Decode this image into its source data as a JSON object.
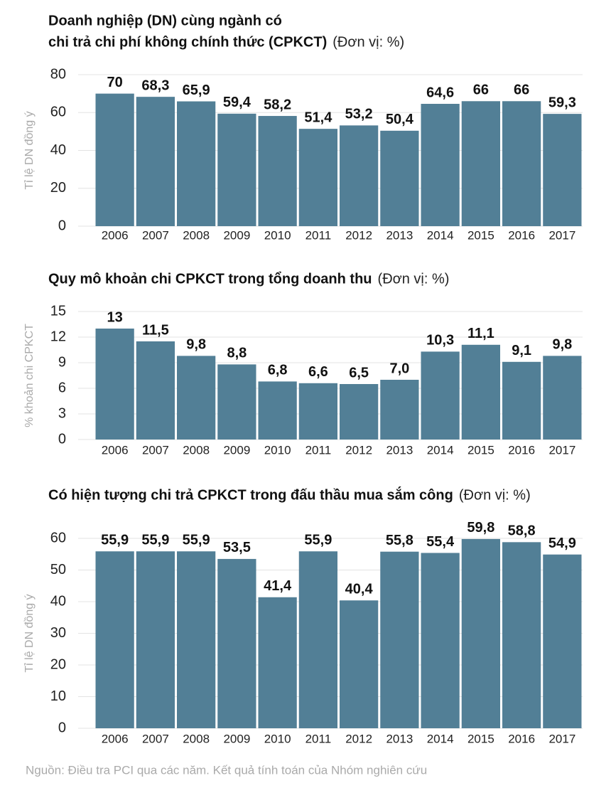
{
  "chart_data": [
    {
      "type": "bar",
      "title": [
        "Doanh nghiệp (DN) cùng ngành có",
        "chi trả chi phí không chính thức (CPKCT)"
      ],
      "unit": "(Đơn vị: %)",
      "ylabel": "Tỉ lệ DN đồng ý",
      "categories": [
        "2006",
        "2007",
        "2008",
        "2009",
        "2010",
        "2011",
        "2012",
        "2013",
        "2014",
        "2015",
        "2016",
        "2017"
      ],
      "values": [
        70,
        68.3,
        65.9,
        59.4,
        58.2,
        51.4,
        53.2,
        50.4,
        64.6,
        66,
        66,
        59.3
      ],
      "value_labels": [
        "70",
        "68,3",
        "65,9",
        "59,4",
        "58,2",
        "51,4",
        "53,2",
        "50,4",
        "64,6",
        "66",
        "66",
        "59,3"
      ],
      "color": "#527f96",
      "ylim": [
        0,
        80
      ],
      "yticks": [
        0,
        20,
        40,
        60,
        80
      ],
      "grid": true
    },
    {
      "type": "bar",
      "title": "Quy mô khoản chi CPKCT trong tổng doanh thu",
      "unit": "(Đơn vị: %)",
      "ylabel": "% khoản chi CPKCT",
      "categories": [
        "2006",
        "2007",
        "2008",
        "2009",
        "2010",
        "2011",
        "2012",
        "2013",
        "2014",
        "2015",
        "2016",
        "2017"
      ],
      "values": [
        13,
        11.5,
        9.8,
        8.8,
        6.8,
        6.6,
        6.5,
        7.0,
        10.3,
        11.1,
        9.1,
        9.8
      ],
      "value_labels": [
        "13",
        "11,5",
        "9,8",
        "8,8",
        "6,8",
        "6,6",
        "6,5",
        "7,0",
        "10,3",
        "11,1",
        "9,1",
        "9,8"
      ],
      "color": "#527f96",
      "ylim": [
        0,
        15
      ],
      "yticks": [
        0,
        3,
        6,
        9,
        12,
        15
      ],
      "grid": true
    },
    {
      "type": "bar",
      "title": "Có hiện tượng chi trả CPKCT trong đấu thầu mua sắm công",
      "unit": "(Đơn vị: %)",
      "ylabel": "Tỉ lệ DN đồng ý",
      "categories": [
        "2006",
        "2007",
        "2008",
        "2009",
        "2010",
        "2011",
        "2012",
        "2013",
        "2014",
        "2015",
        "2016",
        "2017"
      ],
      "values": [
        55.9,
        55.9,
        55.9,
        53.5,
        41.4,
        55.9,
        40.4,
        55.8,
        55.4,
        59.8,
        58.8,
        54.9
      ],
      "value_labels": [
        "55,9",
        "55,9",
        "55,9",
        "53,5",
        "41,4",
        "55,9",
        "40,4",
        "55,8",
        "55,4",
        "59,8",
        "58,8",
        "54,9"
      ],
      "color": "#527f96",
      "ylim": [
        0,
        60
      ],
      "yticks": [
        0,
        10,
        20,
        30,
        40,
        50,
        60
      ],
      "grid": true
    }
  ],
  "source": "Nguồn: Điều tra PCI qua các năm. Kết quả tính toán của Nhóm nghiên cứu"
}
